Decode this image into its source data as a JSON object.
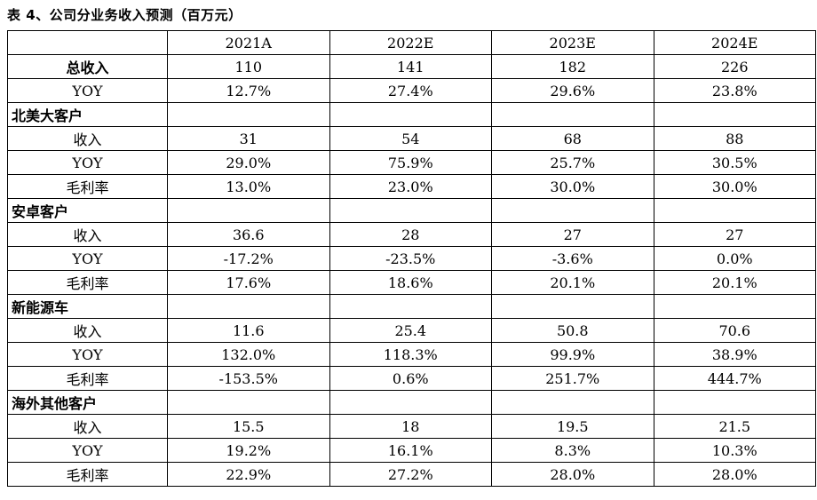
{
  "caption": "表 4、公司分业务收入预测（百万元）",
  "columns": [
    "2021A",
    "2022E",
    "2023E",
    "2024E"
  ],
  "rows": [
    {
      "label": "总收入",
      "kind": "top",
      "values": [
        "110",
        "141",
        "182",
        "226"
      ]
    },
    {
      "label": "YOY",
      "kind": "yoy",
      "values": [
        "12.7%",
        "27.4%",
        "29.6%",
        "23.8%"
      ]
    },
    {
      "label": "北美大客户",
      "kind": "sec",
      "values": [
        "",
        "",
        "",
        ""
      ]
    },
    {
      "label": "收入",
      "kind": "sub",
      "values": [
        "31",
        "54",
        "68",
        "88"
      ]
    },
    {
      "label": "YOY",
      "kind": "yoy",
      "values": [
        "29.0%",
        "75.9%",
        "25.7%",
        "30.5%"
      ]
    },
    {
      "label": "毛利率",
      "kind": "sub",
      "values": [
        "13.0%",
        "23.0%",
        "30.0%",
        "30.0%"
      ]
    },
    {
      "label": "安卓客户",
      "kind": "sec",
      "values": [
        "",
        "",
        "",
        ""
      ]
    },
    {
      "label": "收入",
      "kind": "sub",
      "values": [
        "36.6",
        "28",
        "27",
        "27"
      ]
    },
    {
      "label": "YOY",
      "kind": "yoy",
      "values": [
        "-17.2%",
        "-23.5%",
        "-3.6%",
        "0.0%"
      ]
    },
    {
      "label": "毛利率",
      "kind": "sub",
      "values": [
        "17.6%",
        "18.6%",
        "20.1%",
        "20.1%"
      ]
    },
    {
      "label": "新能源车",
      "kind": "sec",
      "values": [
        "",
        "",
        "",
        ""
      ]
    },
    {
      "label": "收入",
      "kind": "sub",
      "values": [
        "11.6",
        "25.4",
        "50.8",
        "70.6"
      ]
    },
    {
      "label": "YOY",
      "kind": "yoy",
      "values": [
        "132.0%",
        "118.3%",
        "99.9%",
        "38.9%"
      ]
    },
    {
      "label": "毛利率",
      "kind": "sub",
      "values": [
        "-153.5%",
        "0.6%",
        "251.7%",
        "444.7%"
      ]
    },
    {
      "label": "海外其他客户",
      "kind": "sec",
      "values": [
        "",
        "",
        "",
        ""
      ]
    },
    {
      "label": "收入",
      "kind": "sub",
      "values": [
        "15.5",
        "18",
        "19.5",
        "21.5"
      ]
    },
    {
      "label": "YOY",
      "kind": "yoy",
      "values": [
        "19.2%",
        "16.1%",
        "8.3%",
        "10.3%"
      ]
    },
    {
      "label": "毛利率",
      "kind": "sub",
      "values": [
        "22.9%",
        "27.2%",
        "28.0%",
        "28.0%"
      ]
    }
  ]
}
